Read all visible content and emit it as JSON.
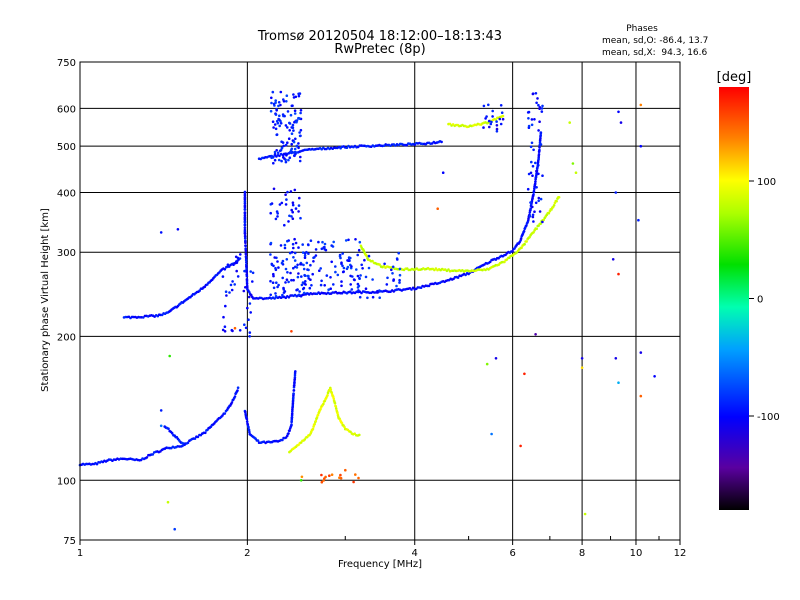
{
  "chart_data": {
    "type": "scatter",
    "title": "Tromsø 20120504 18:12:00–18:13:43",
    "subtitle": "RwPretec (8p)",
    "xlabel": "Frequency [MHz]",
    "ylabel": "Stationary phase Virtual Height [km]",
    "x_scale": "log",
    "y_scale": "log",
    "xlim": [
      1,
      12
    ],
    "ylim": [
      75,
      750
    ],
    "x_ticks": [
      1,
      2,
      4,
      6,
      8,
      10,
      12
    ],
    "x_tick_labels": [
      "1",
      "2",
      "4",
      "6",
      "8",
      "10",
      "12"
    ],
    "y_ticks": [
      75,
      100,
      200,
      300,
      400,
      500,
      600,
      750
    ],
    "y_tick_labels": [
      "75",
      "100",
      "200",
      "300",
      "400",
      "500",
      "600",
      "750"
    ],
    "grid": true,
    "phase_stats": {
      "heading": "Phases",
      "line_o": "mean, sd,O: -86.4, 13.7",
      "line_x": "mean, sd,X:  94.3, 16.6"
    },
    "colorbar": {
      "label": "[deg]",
      "range": [
        -180,
        180
      ],
      "tick_values": [
        100,
        0,
        -100
      ],
      "tick_labels": [
        "100",
        "0",
        "-100"
      ]
    },
    "traces": [
      {
        "phase": -95,
        "points": [
          [
            1.0,
            108
          ],
          [
            1.06,
            108
          ],
          [
            1.12,
            110
          ],
          [
            1.2,
            111
          ],
          [
            1.28,
            110
          ],
          [
            1.36,
            114
          ],
          [
            1.44,
            117
          ],
          [
            1.52,
            118
          ],
          [
            1.6,
            122
          ],
          [
            1.68,
            126
          ],
          [
            1.76,
            133
          ],
          [
            1.84,
            140
          ],
          [
            1.9,
            150
          ],
          [
            1.93,
            157
          ]
        ]
      },
      {
        "phase": -95,
        "points": [
          [
            1.98,
            140
          ],
          [
            2.02,
            125
          ],
          [
            2.1,
            120
          ],
          [
            2.2,
            120
          ],
          [
            2.3,
            121
          ],
          [
            2.36,
            124
          ],
          [
            2.4,
            130
          ],
          [
            2.42,
            150
          ],
          [
            2.44,
            170
          ]
        ]
      },
      {
        "phase": -95,
        "points": [
          [
            1.2,
            219
          ],
          [
            1.3,
            220
          ],
          [
            1.38,
            221
          ],
          [
            1.44,
            224
          ],
          [
            1.5,
            232
          ],
          [
            1.58,
            242
          ],
          [
            1.66,
            252
          ],
          [
            1.72,
            262
          ],
          [
            1.8,
            275
          ],
          [
            1.9,
            285
          ],
          [
            1.95,
            292
          ]
        ]
      },
      {
        "phase": -98,
        "points": [
          [
            1.98,
            400
          ],
          [
            1.98,
            330
          ],
          [
            1.99,
            290
          ],
          [
            2.0,
            250
          ],
          [
            2.05,
            241
          ],
          [
            2.15,
            240
          ],
          [
            2.3,
            241
          ],
          [
            2.6,
            246
          ],
          [
            3.0,
            247
          ],
          [
            3.5,
            248
          ],
          [
            4.0,
            252
          ],
          [
            4.5,
            260
          ],
          [
            5.0,
            271
          ],
          [
            5.5,
            288
          ],
          [
            6.0,
            302
          ],
          [
            6.2,
            318
          ],
          [
            6.4,
            350
          ],
          [
            6.55,
            400
          ],
          [
            6.68,
            470
          ],
          [
            6.75,
            540
          ]
        ]
      },
      {
        "phase": -92,
        "points": [
          [
            2.1,
            470
          ],
          [
            2.3,
            480
          ],
          [
            2.6,
            492
          ],
          [
            3.0,
            498
          ],
          [
            3.5,
            502
          ],
          [
            4.0,
            505
          ],
          [
            4.3,
            508
          ],
          [
            4.5,
            512
          ]
        ]
      },
      {
        "phase": 80,
        "points": [
          [
            3.2,
            310
          ],
          [
            3.3,
            290
          ],
          [
            3.5,
            280
          ],
          [
            3.8,
            276
          ],
          [
            4.2,
            277
          ],
          [
            4.6,
            275
          ],
          [
            5.0,
            274
          ],
          [
            5.4,
            276
          ],
          [
            5.8,
            287
          ],
          [
            6.2,
            305
          ],
          [
            6.6,
            335
          ],
          [
            7.0,
            365
          ],
          [
            7.3,
            395
          ]
        ]
      },
      {
        "phase": 85,
        "points": [
          [
            4.6,
            555
          ],
          [
            5.0,
            550
          ],
          [
            5.4,
            560
          ],
          [
            5.8,
            580
          ]
        ]
      },
      {
        "phase": 90,
        "points": [
          [
            2.38,
            115
          ],
          [
            2.5,
            120
          ],
          [
            2.6,
            125
          ],
          [
            2.7,
            140
          ],
          [
            2.78,
            150
          ],
          [
            2.82,
            156
          ],
          [
            2.86,
            148
          ],
          [
            2.92,
            135
          ],
          [
            3.0,
            128
          ],
          [
            3.1,
            125
          ],
          [
            3.2,
            124
          ]
        ]
      },
      {
        "phase": -90,
        "points": [
          [
            1.42,
            130
          ],
          [
            1.45,
            127
          ],
          [
            1.48,
            124
          ],
          [
            1.5,
            122
          ],
          [
            1.52,
            120
          ],
          [
            1.55,
            118
          ]
        ]
      }
    ],
    "clusters": [
      {
        "phase": -90,
        "x": [
          2.2,
          2.5
        ],
        "y": [
          460,
          650
        ],
        "count": 120
      },
      {
        "phase": -92,
        "x": [
          2.2,
          2.6
        ],
        "y": [
          240,
          320
        ],
        "count": 90
      },
      {
        "phase": -88,
        "x": [
          2.5,
          3.2
        ],
        "y": [
          250,
          320
        ],
        "count": 80
      },
      {
        "phase": -90,
        "x": [
          3.0,
          3.8
        ],
        "y": [
          240,
          300
        ],
        "count": 40
      },
      {
        "phase": -95,
        "x": [
          1.8,
          2.05
        ],
        "y": [
          200,
          300
        ],
        "count": 40
      },
      {
        "phase": -95,
        "x": [
          2.2,
          2.5
        ],
        "y": [
          340,
          410
        ],
        "count": 30
      },
      {
        "phase": -95,
        "x": [
          6.4,
          6.8
        ],
        "y": [
          340,
          650
        ],
        "count": 50
      },
      {
        "phase": -100,
        "x": [
          5.3,
          5.8
        ],
        "y": [
          520,
          620
        ],
        "count": 20
      },
      {
        "phase": 150,
        "x": [
          2.5,
          3.2
        ],
        "y": [
          99,
          103
        ],
        "count": 14
      }
    ],
    "scatter_points": [
      {
        "phase": -90,
        "x": 1.4,
        "y": 140
      },
      {
        "phase": -60,
        "x": 1.4,
        "y": 130
      },
      {
        "phase": -95,
        "x": 1.4,
        "y": 330
      },
      {
        "phase": -100,
        "x": 1.5,
        "y": 335
      },
      {
        "phase": 40,
        "x": 1.45,
        "y": 182
      },
      {
        "phase": -80,
        "x": 1.48,
        "y": 79
      },
      {
        "phase": 80,
        "x": 1.44,
        "y": 90
      },
      {
        "phase": 150,
        "x": 1.9,
        "y": 208
      },
      {
        "phase": 160,
        "x": 2.4,
        "y": 205
      },
      {
        "phase": -100,
        "x": 4.5,
        "y": 440
      },
      {
        "phase": 150,
        "x": 4.4,
        "y": 370
      },
      {
        "phase": -110,
        "x": 5.6,
        "y": 180
      },
      {
        "phase": 60,
        "x": 5.4,
        "y": 175
      },
      {
        "phase": 170,
        "x": 6.3,
        "y": 167
      },
      {
        "phase": -140,
        "x": 6.6,
        "y": 202
      },
      {
        "phase": 170,
        "x": 6.2,
        "y": 118
      },
      {
        "phase": 80,
        "x": 7.6,
        "y": 560
      },
      {
        "phase": 60,
        "x": 7.7,
        "y": 460
      },
      {
        "phase": 80,
        "x": 7.8,
        "y": 440
      },
      {
        "phase": -110,
        "x": 8.0,
        "y": 180
      },
      {
        "phase": 110,
        "x": 8.0,
        "y": 172
      },
      {
        "phase": 80,
        "x": 8.1,
        "y": 85
      },
      {
        "phase": -100,
        "x": 9.3,
        "y": 590
      },
      {
        "phase": -110,
        "x": 9.4,
        "y": 560
      },
      {
        "phase": -90,
        "x": 9.2,
        "y": 400
      },
      {
        "phase": -110,
        "x": 9.1,
        "y": 290
      },
      {
        "phase": 170,
        "x": 9.3,
        "y": 270
      },
      {
        "phase": -110,
        "x": 9.2,
        "y": 180
      },
      {
        "phase": -40,
        "x": 9.3,
        "y": 160
      },
      {
        "phase": 140,
        "x": 10.2,
        "y": 610
      },
      {
        "phase": -100,
        "x": 10.2,
        "y": 500
      },
      {
        "phase": -90,
        "x": 10.1,
        "y": 350
      },
      {
        "phase": -110,
        "x": 10.2,
        "y": 185
      },
      {
        "phase": -100,
        "x": 10.8,
        "y": 165
      },
      {
        "phase": 150,
        "x": 10.2,
        "y": 150
      },
      {
        "phase": -60,
        "x": 5.5,
        "y": 125
      },
      {
        "phase": 150,
        "x": 3.0,
        "y": 105
      },
      {
        "phase": 40,
        "x": 2.5,
        "y": 100
      }
    ]
  }
}
